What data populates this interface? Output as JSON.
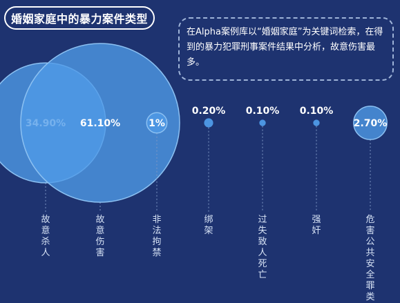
{
  "title": "婚姻家庭中的暴力案件类型",
  "note": "在Alpha案例库以“婚姻家庭”为关键词检索，在得到的暴力犯罪刑事案件结果中分析，故意伤害最多。",
  "colors": {
    "background": "#1e3370",
    "bubble": "#4f9be8",
    "bubble_stroke": "#8cc1f2",
    "leader": "#7f97c4"
  },
  "chart_data": {
    "type": "bubble",
    "title": "婚姻家庭中的暴力案件类型",
    "categories": [
      "故意杀人",
      "故意伤害",
      "非法拘禁",
      "绑架",
      "过失致人死亡",
      "强奸",
      "危害公共安全罪类"
    ],
    "values": [
      34.9,
      61.1,
      1.0,
      0.2,
      0.1,
      0.1,
      2.7
    ],
    "value_labels": [
      "34.90%",
      "61.10%",
      "1%",
      "0.20%",
      "0.10%",
      "0.10%",
      "2.70%"
    ],
    "unit": "%"
  }
}
